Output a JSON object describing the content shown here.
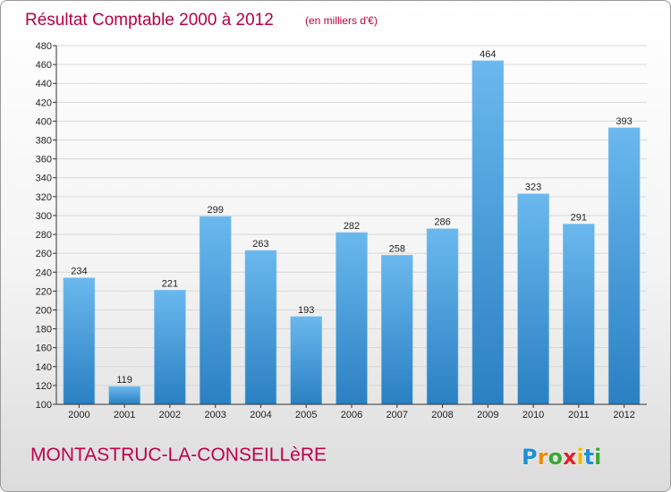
{
  "title": "Résultat Comptable 2000 à 2012",
  "subtitle": "(en milliers d'€)",
  "commune": "MONTASTRUC-LA-CONSEILLèRE",
  "logo": {
    "text": "Proxiti",
    "letters": [
      "P",
      "r",
      "o",
      "x",
      "i",
      "t",
      "i"
    ],
    "colors": [
      "#1e8fd6",
      "#f08a00",
      "#3aa635",
      "#e0202a",
      "#f0b800",
      "#1e8fd6",
      "#3aa635"
    ]
  },
  "colors": {
    "bar_light": "#6ab8ee",
    "bar_dark": "#2a80c2",
    "grid": "#d8d8d8",
    "axis": "#333333"
  },
  "chart_data": {
    "type": "bar",
    "title": "Résultat Comptable 2000 à 2012",
    "subtitle": "(en milliers d'€)",
    "xlabel": "",
    "ylabel": "",
    "categories": [
      "2000",
      "2001",
      "2002",
      "2003",
      "2004",
      "2005",
      "2006",
      "2007",
      "2008",
      "2009",
      "2010",
      "2011",
      "2012"
    ],
    "values": [
      234,
      119,
      221,
      299,
      263,
      193,
      282,
      258,
      286,
      464,
      323,
      291,
      393
    ],
    "ylim": [
      100,
      480
    ],
    "yticks": [
      100,
      120,
      140,
      160,
      180,
      200,
      220,
      240,
      260,
      280,
      300,
      320,
      340,
      360,
      380,
      400,
      420,
      440,
      460,
      480
    ],
    "grid": true,
    "legend": "none"
  }
}
